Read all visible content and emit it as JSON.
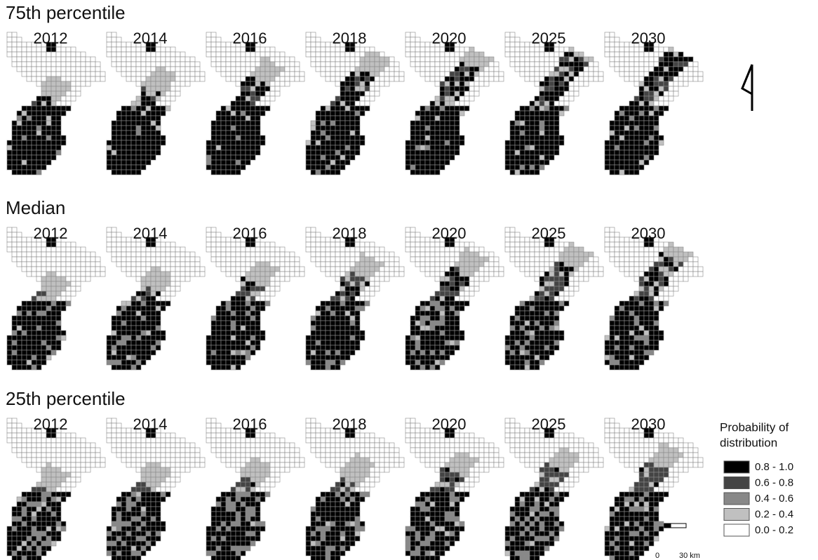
{
  "rows": [
    {
      "title": "75th percentile",
      "years": [
        "2012",
        "2014",
        "2016",
        "2018",
        "2020",
        "2025",
        "2030"
      ]
    },
    {
      "title": "Median",
      "years": [
        "2012",
        "2014",
        "2016",
        "2018",
        "2020",
        "2025",
        "2030"
      ]
    },
    {
      "title": "25th percentile",
      "years": [
        "2012",
        "2014",
        "2016",
        "2018",
        "2020",
        "2025",
        "2030"
      ]
    }
  ],
  "legend": {
    "title_lines": [
      "Probability of",
      "distribution"
    ],
    "items": [
      {
        "label": "0.8 - 1.0",
        "color": "#000000"
      },
      {
        "label": "0.6 - 0.8",
        "color": "#444444"
      },
      {
        "label": "0.4 - 0.6",
        "color": "#888888"
      },
      {
        "label": "0.2 - 0.4",
        "color": "#c0c0c0"
      },
      {
        "label": "0.0 - 0.2",
        "color": "#ffffff"
      }
    ]
  },
  "scale_bar": {
    "start": "0",
    "end": "30 km"
  }
}
